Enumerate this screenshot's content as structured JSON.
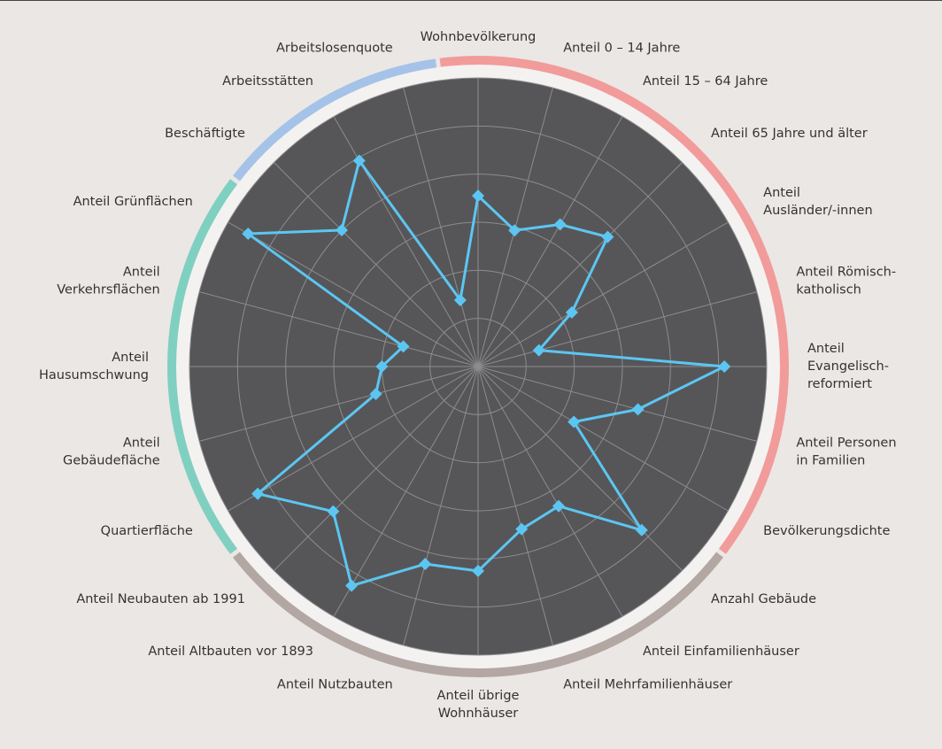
{
  "chart_data": {
    "type": "radar",
    "categories": [
      [
        "Wohnbevölkerung"
      ],
      [
        "Anteil 0 – 14 Jahre"
      ],
      [
        "Anteil 15 – 64 Jahre"
      ],
      [
        "Anteil 65 Jahre und älter"
      ],
      [
        "Anteil",
        "Ausländer/-innen"
      ],
      [
        "Anteil Römisch-",
        "katholisch"
      ],
      [
        "Anteil",
        "Evangelisch-",
        "reformiert"
      ],
      [
        "Anteil Personen",
        "in Familien"
      ],
      [
        "Bevölkerungsdichte"
      ],
      [
        "Anzahl Gebäude"
      ],
      [
        "Anteil Einfamilienhäuser"
      ],
      [
        "Anteil Mehrfamilienhäuser"
      ],
      [
        "Anteil übrige",
        "Wohnhäuser"
      ],
      [
        "Anteil Nutzbauten"
      ],
      [
        "Anteil Altbauten vor 1893"
      ],
      [
        "Anteil Neubauten ab 1991"
      ],
      [
        "Quartierfläche"
      ],
      [
        "Anteil",
        "Gebäudefläche"
      ],
      [
        "Anteil",
        "Hausumschwung"
      ],
      [
        "Anteil",
        "Verkehrsflächen"
      ],
      [
        "Anteil Grünflächen"
      ],
      [
        "Beschäftigte"
      ],
      [
        "Arbeitsstätten"
      ],
      [
        "Arbeitslosenquote"
      ]
    ],
    "category_colors": [
      "#f29b9b",
      "#f29b9b",
      "#f29b9b",
      "#f29b9b",
      "#f29b9b",
      "#f29b9b",
      "#f29b9b",
      "#f29b9b",
      "#f29b9b",
      "#b3a7a3",
      "#b3a7a3",
      "#b3a7a3",
      "#b3a7a3",
      "#b3a7a3",
      "#b3a7a3",
      "#b3a7a3",
      "#7fd0c1",
      "#7fd0c1",
      "#7fd0c1",
      "#7fd0c1",
      "#7fd0c1",
      "#a5c3e8",
      "#a5c3e8",
      "#a5c3e8"
    ],
    "values": [
      3.55,
      2.93,
      3.41,
      3.81,
      2.25,
      1.31,
      5.12,
      3.44,
      2.3,
      4.81,
      3.35,
      3.5,
      4.25,
      4.25,
      5.26,
      4.26,
      5.29,
      2.2,
      2.0,
      1.61,
      5.52,
      4.01,
      4.94,
      1.43
    ],
    "color": "#5cc6f2",
    "rlim": [
      0,
      6
    ],
    "rticks": [
      1,
      2,
      3,
      4,
      5,
      6
    ],
    "grid": true
  }
}
